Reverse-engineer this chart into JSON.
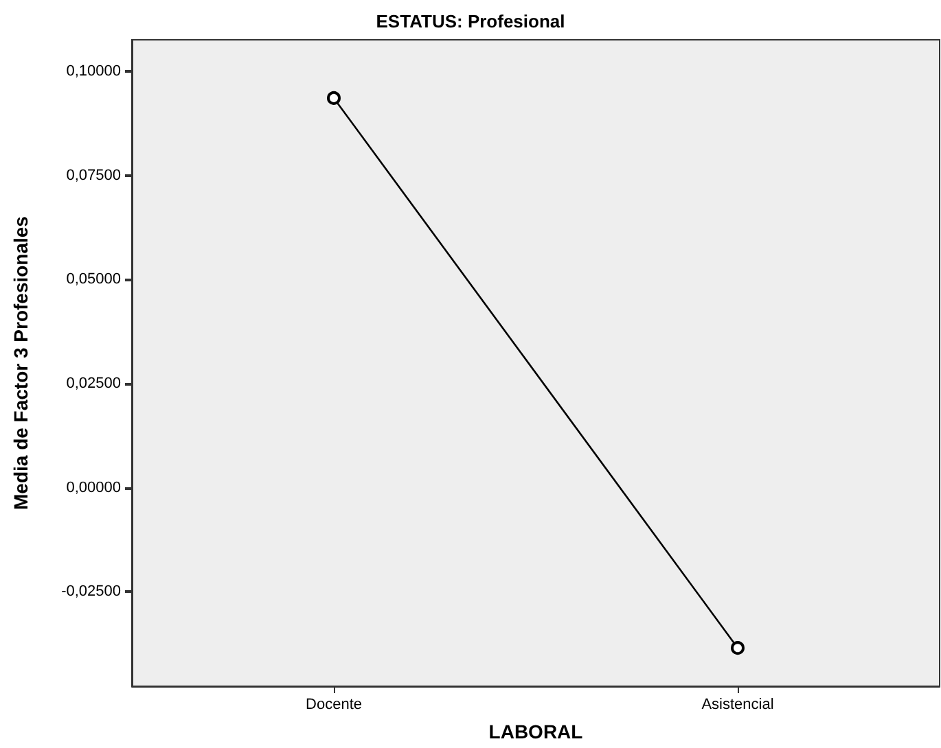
{
  "chart_data": {
    "type": "line",
    "title": "ESTATUS: Profesional",
    "xlabel": "LABORAL",
    "ylabel": "Media de Factor 3 Profesionales",
    "categories": [
      "Docente",
      "Asistencial"
    ],
    "series": [
      {
        "color": "#000000",
        "values": [
          0.0936,
          -0.0385
        ]
      }
    ],
    "ylim": [
      -0.0477,
      0.1076
    ],
    "yticks": [
      {
        "value": -0.025,
        "label": "-0,02500"
      },
      {
        "value": 0,
        "label": "0,00000"
      },
      {
        "value": 0.025,
        "label": "0,02500"
      },
      {
        "value": 0.05,
        "label": "0,05000"
      },
      {
        "value": 0.075,
        "label": "0,07500"
      },
      {
        "value": 0.1,
        "label": "0,10000"
      }
    ],
    "marker": "circle",
    "line_style": "solid",
    "grid": false
  }
}
